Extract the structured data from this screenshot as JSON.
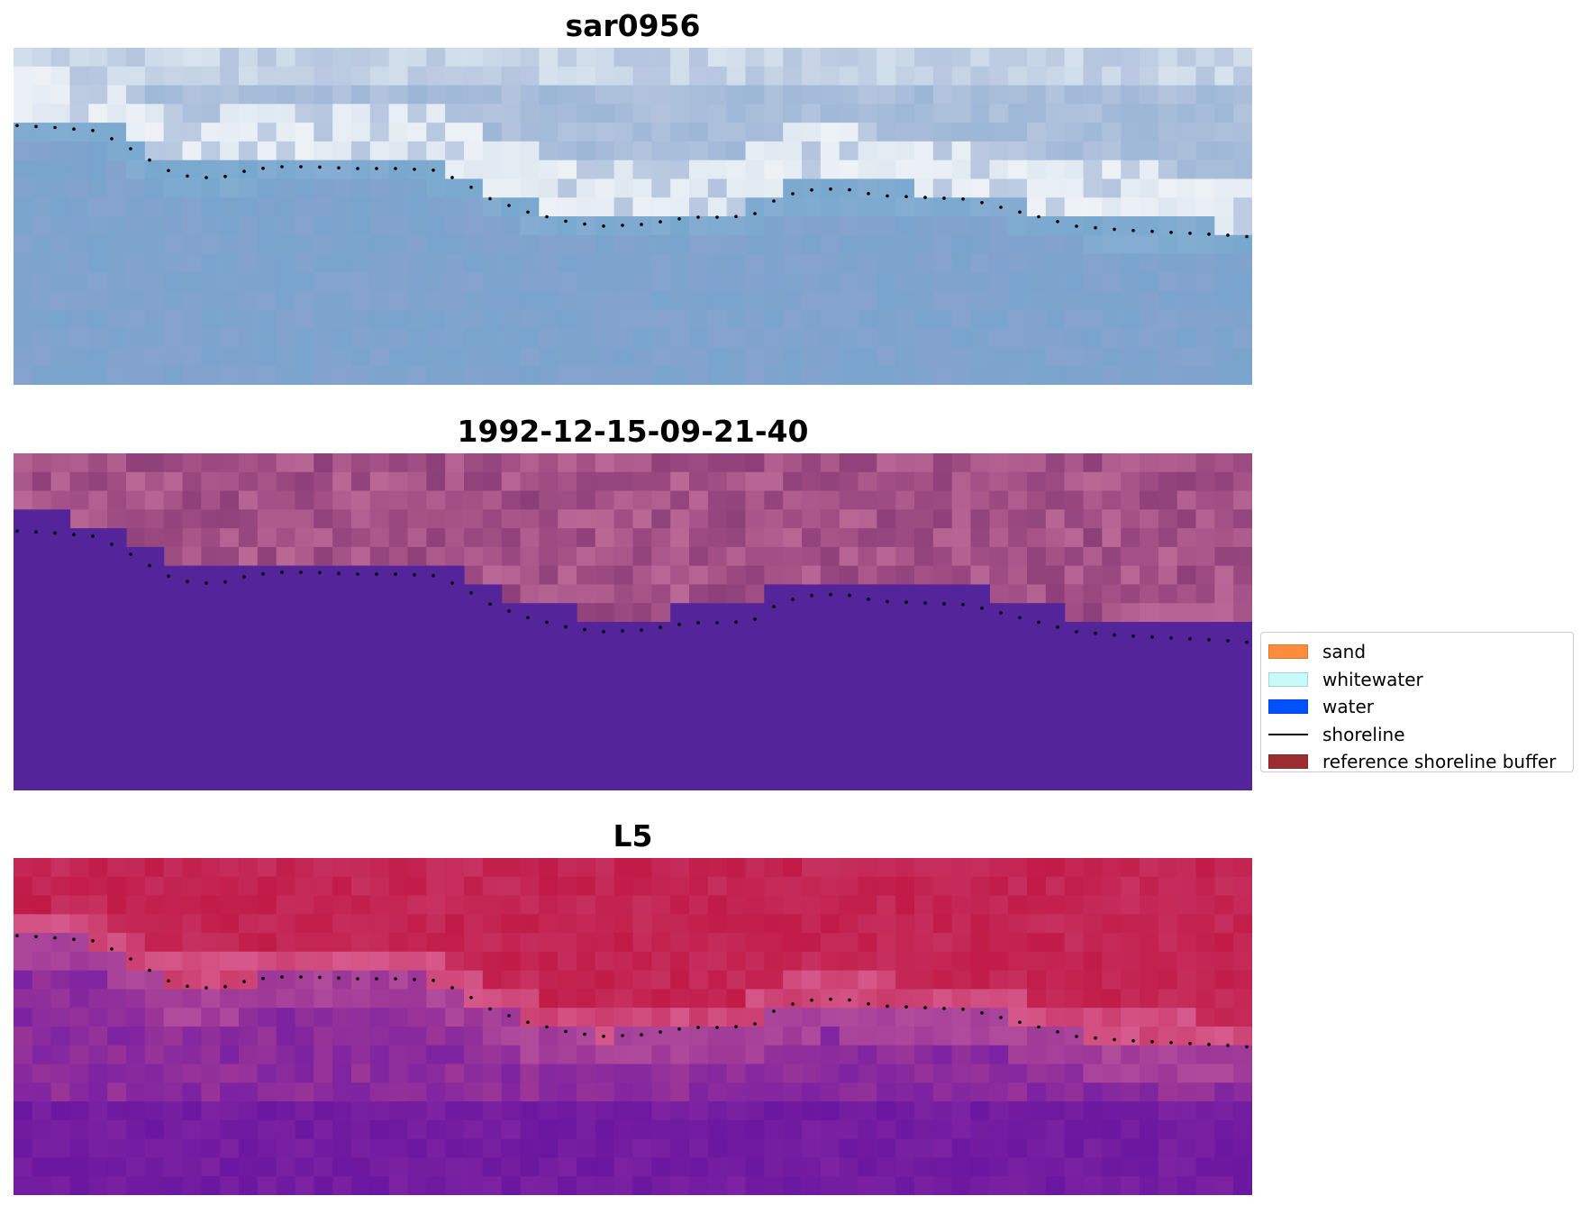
{
  "panels": [
    {
      "title": "sar0956",
      "kind": "rgb-image",
      "palette": [
        "#6fa4cc",
        "#9cb6d6",
        "#b4c4de",
        "#d8e4ee",
        "#eef2f7",
        "#8fa3cf"
      ]
    },
    {
      "title": "1992-12-15-09-21-40",
      "kind": "classified-image",
      "land_color": "#a25085",
      "water_color": "#54249b"
    },
    {
      "title": "L5",
      "kind": "false-color-image",
      "palette": [
        "#c11a47",
        "#c93a6a",
        "#9b3597",
        "#7c22a2",
        "#6a16a0"
      ]
    }
  ],
  "legend": {
    "items": [
      {
        "label": "sand",
        "type": "patch",
        "color": "#ff8c3c"
      },
      {
        "label": "whitewater",
        "type": "patch",
        "color": "#c8fafa"
      },
      {
        "label": "water",
        "type": "patch",
        "color": "#0050ff"
      },
      {
        "label": "shoreline",
        "type": "line",
        "color": "#000000"
      },
      {
        "label": "reference shoreline buffer",
        "type": "patch",
        "color": "#9b2d32"
      }
    ]
  }
}
